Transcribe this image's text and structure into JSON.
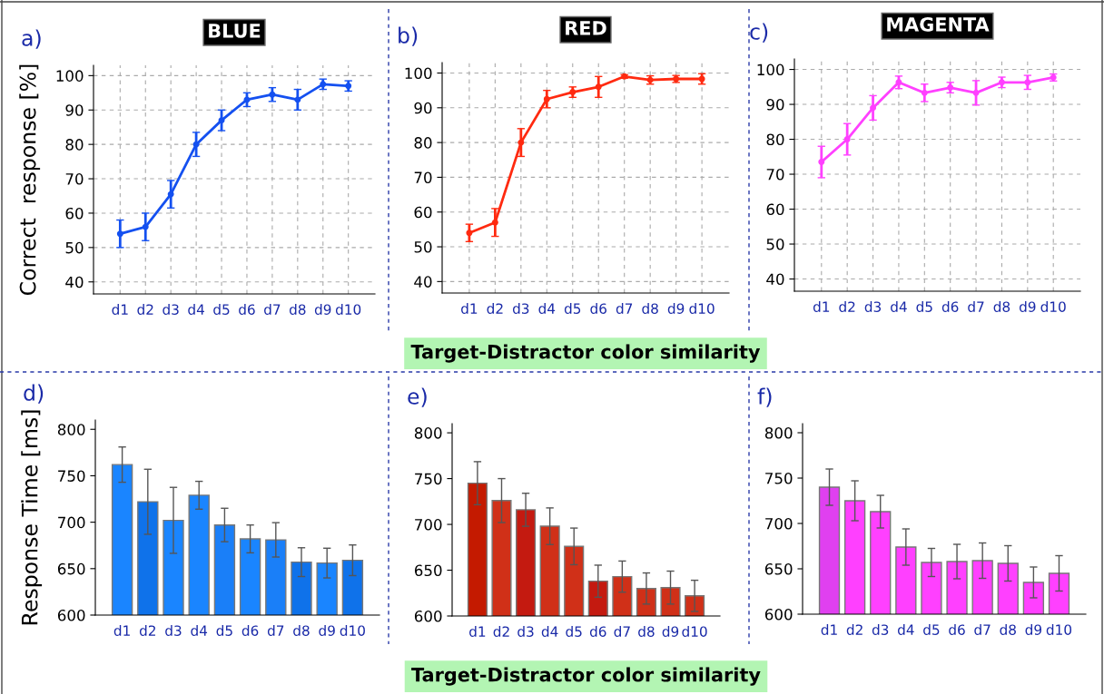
{
  "chart_data": [
    {
      "type": "line",
      "title": "BLUE",
      "ylabel": "Correct  response [%]",
      "annotations": [
        "a)"
      ],
      "categories": [
        "d1",
        "d2",
        "d3",
        "d4",
        "d5",
        "d6",
        "d7",
        "d8",
        "d9",
        "d10"
      ],
      "values": [
        54,
        56,
        65.5,
        80,
        87,
        93,
        94.5,
        93,
        97.5,
        97
      ],
      "errors": [
        4,
        4,
        4,
        3.5,
        3,
        2,
        2,
        3,
        1.5,
        1.5
      ],
      "color": "#1450f0",
      "marker": "circle",
      "grid": true,
      "ylim": [
        36.5,
        103
      ],
      "yticks": [
        40,
        50,
        60,
        70,
        80,
        90,
        100
      ]
    },
    {
      "type": "line",
      "title": "RED",
      "xlabel": "Target-Distractor color similarity",
      "annotations": [
        "b)"
      ],
      "categories": [
        "d1",
        "d2",
        "d3",
        "d4",
        "d5",
        "d6",
        "d7",
        "d8",
        "d9",
        "d10"
      ],
      "values": [
        54,
        57,
        80,
        92.5,
        94.5,
        96,
        99,
        98,
        98.3,
        98.3
      ],
      "errors": [
        2.5,
        4,
        4,
        2.5,
        1.5,
        3,
        0.5,
        1.2,
        1,
        1.5
      ],
      "color": "#ff2a10",
      "marker": "circle",
      "grid": true,
      "ylim": [
        36.7,
        103
      ],
      "yticks": [
        40,
        50,
        60,
        70,
        80,
        90,
        100
      ]
    },
    {
      "type": "line",
      "title": "MAGENTA",
      "annotations": [
        "c)"
      ],
      "categories": [
        "d1",
        "d2",
        "d3",
        "d4",
        "d5",
        "d6",
        "d7",
        "d8",
        "d9",
        "d10"
      ],
      "values": [
        73.5,
        80,
        89,
        96.3,
        93.3,
        94.8,
        93.3,
        96.3,
        96.3,
        97.7
      ],
      "errors": [
        4.5,
        4.5,
        3.5,
        1.8,
        2.5,
        1.5,
        3.5,
        1.5,
        2,
        1
      ],
      "color": "#ff40ff",
      "marker": "circle",
      "grid": true,
      "ylim": [
        36.5,
        103
      ],
      "yticks": [
        40,
        50,
        60,
        70,
        80,
        90,
        100
      ]
    },
    {
      "type": "bar",
      "ylabel": "Response Time [ms]",
      "annotations": [
        "d)"
      ],
      "categories": [
        "d1",
        "d2",
        "d3",
        "d4",
        "d5",
        "d6",
        "d7",
        "d8",
        "d9",
        "d10"
      ],
      "values": [
        762,
        722,
        702,
        729,
        697,
        682,
        681,
        657,
        656,
        659
      ],
      "errors": [
        19,
        35,
        35.5,
        15,
        18,
        15,
        18.5,
        15.5,
        16,
        16.5
      ],
      "colors": [
        "#1a85ff",
        "#0f72ea",
        "#1a85ff",
        "#1a85ff",
        "#1a7ff8",
        "#1a85ff",
        "#1a7ff8",
        "#0f72ea",
        "#1a85ff",
        "#0f72ea"
      ],
      "ylim": [
        600,
        810
      ],
      "yticks": [
        600,
        650,
        700,
        750,
        800
      ]
    },
    {
      "type": "bar",
      "xlabel": "Target-Distractor color similarity",
      "annotations": [
        "e)"
      ],
      "categories": [
        "d1",
        "d2",
        "d3",
        "d4",
        "d5",
        "d6",
        "d7",
        "d8",
        "d9",
        "d10"
      ],
      "values": [
        745,
        726,
        716,
        698,
        676,
        638,
        643,
        630,
        631,
        622
      ],
      "errors": [
        23.5,
        24,
        18,
        20,
        20,
        17.5,
        17,
        17,
        18,
        17
      ],
      "colors": [
        "#c41a00",
        "#d03018",
        "#c41a10",
        "#d03018",
        "#d03018",
        "#c41a10",
        "#d03018",
        "#d03018",
        "#d03018",
        "#d03018"
      ],
      "ylim": [
        600,
        810
      ],
      "yticks": [
        600,
        650,
        700,
        750,
        800
      ]
    },
    {
      "type": "bar",
      "annotations": [
        "f)"
      ],
      "categories": [
        "d1",
        "d2",
        "d3",
        "d4",
        "d5",
        "d6",
        "d7",
        "d8",
        "d9",
        "d10"
      ],
      "values": [
        740,
        725,
        713,
        674,
        657,
        658,
        659,
        656,
        635,
        645
      ],
      "errors": [
        20,
        22,
        18,
        20,
        15.5,
        19,
        19.5,
        19.5,
        17,
        19.5
      ],
      "colors": [
        "#e040f0",
        "#ff40ff",
        "#ff40ff",
        "#ff40ff",
        "#ff40ff",
        "#ff40ff",
        "#ff40ff",
        "#ff40ff",
        "#ff40ff",
        "#ff40ff"
      ],
      "ylim": [
        600,
        810
      ],
      "yticks": [
        600,
        650,
        700,
        750,
        800
      ]
    }
  ]
}
